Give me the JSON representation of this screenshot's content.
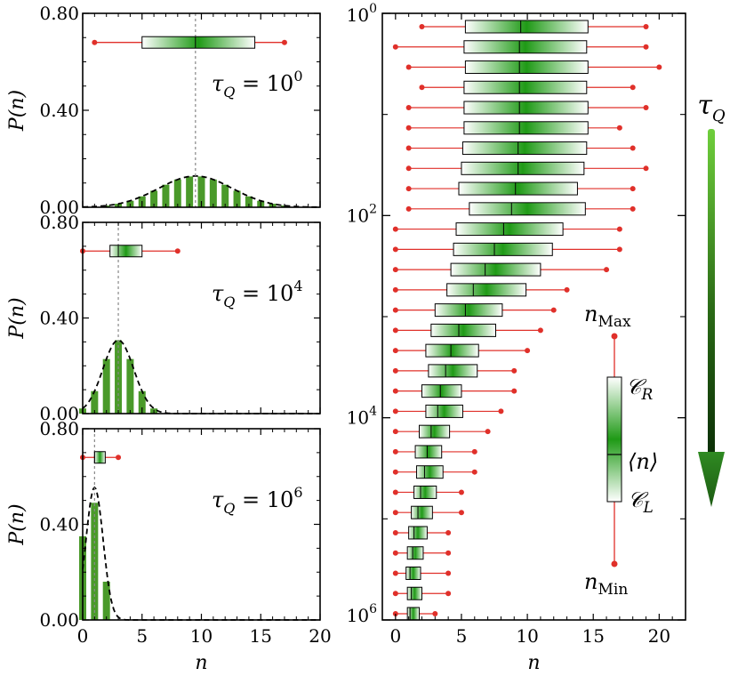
{
  "colors": {
    "bar": "#4a9a2a",
    "box_dark": "#1f9a16",
    "whisker": "#e0302a",
    "fit": "#000000",
    "mean_line": "#888888",
    "arrow_top": "#6fcf3c",
    "arrow_bottom": "#0b2e06"
  },
  "chart_data": [
    {
      "type": "bar",
      "panel": "top-left",
      "annotation": {
        "tau": "τ",
        "sub": "Q",
        "eq": " = 10",
        "exp": "0"
      },
      "xlabel": "n",
      "ylabel": "P(n)",
      "xlim": [
        0,
        20
      ],
      "ylim": [
        0,
        0.8
      ],
      "xticks": [
        "0",
        "5",
        "10",
        "15",
        "20"
      ],
      "yticks": [
        "0.00",
        "0.40",
        "0.80"
      ],
      "fit": {
        "mean": 9.5,
        "sd": 3.1
      },
      "mean_marker": 9.5,
      "box": {
        "min": 1,
        "q1": 5,
        "mean": 9.5,
        "q3": 14.5,
        "max": 17,
        "y": 0.68
      }
    },
    {
      "type": "bar",
      "panel": "middle-left",
      "annotation": {
        "tau": "τ",
        "sub": "Q",
        "eq": " = 10",
        "exp": "4"
      },
      "xlabel": "n",
      "ylabel": "P(n)",
      "xlim": [
        0,
        20
      ],
      "ylim": [
        0,
        0.8
      ],
      "xticks": [
        "0",
        "5",
        "10",
        "15",
        "20"
      ],
      "yticks": [
        "0.00",
        "0.40",
        "0.80"
      ],
      "fit": {
        "mean": 3.0,
        "sd": 1.3
      },
      "mean_marker": 3.0,
      "box": {
        "min": 0,
        "q1": 2.3,
        "mean": 3.0,
        "q3": 5.0,
        "max": 8,
        "y": 0.68
      }
    },
    {
      "type": "bar",
      "panel": "bottom-left",
      "annotation": {
        "tau": "τ",
        "sub": "Q",
        "eq": " = 10",
        "exp": "6"
      },
      "xlabel": "n",
      "ylabel": "P(n)",
      "xlim": [
        0,
        20
      ],
      "ylim": [
        0,
        0.8
      ],
      "xticks": [
        "0",
        "5",
        "10",
        "15",
        "20"
      ],
      "yticks": [
        "0.00",
        "0.40",
        "0.80"
      ],
      "bars": [
        {
          "x": 0,
          "y": 0.35
        },
        {
          "x": 1,
          "y": 0.49
        },
        {
          "x": 2,
          "y": 0.16
        }
      ],
      "fit": {
        "mean": 1.0,
        "sd": 0.72
      },
      "mean_marker": 1.0,
      "box": {
        "min": 0,
        "q1": 1.0,
        "mean": 1.0,
        "q3": 1.9,
        "max": 3,
        "y": 0.68
      }
    },
    {
      "type": "box",
      "panel": "right",
      "xlabel": "n",
      "xlim": [
        -1,
        22
      ],
      "xticks": [
        "0",
        "5",
        "10",
        "15",
        "20"
      ],
      "ylog": true,
      "ylim_exp": [
        0,
        6
      ],
      "yticks": [
        {
          "base": "10",
          "exp": "0"
        },
        {
          "base": "10",
          "exp": "2"
        },
        {
          "base": "10",
          "exp": "4"
        },
        {
          "base": "10",
          "exp": "6"
        }
      ],
      "boxes": [
        {
          "min": 2,
          "q1": 5.3,
          "mean": 9.5,
          "q3": 14.6,
          "max": 19
        },
        {
          "min": 0,
          "q1": 5.2,
          "mean": 9.4,
          "q3": 14.5,
          "max": 19
        },
        {
          "min": 1,
          "q1": 5.3,
          "mean": 9.4,
          "q3": 14.6,
          "max": 20
        },
        {
          "min": 2,
          "q1": 5.2,
          "mean": 9.4,
          "q3": 14.5,
          "max": 18
        },
        {
          "min": 1,
          "q1": 5.2,
          "mean": 9.4,
          "q3": 14.6,
          "max": 19
        },
        {
          "min": 1,
          "q1": 5.2,
          "mean": 9.4,
          "q3": 14.6,
          "max": 17
        },
        {
          "min": 1,
          "q1": 5.1,
          "mean": 9.3,
          "q3": 14.5,
          "max": 18
        },
        {
          "min": 1,
          "q1": 5.0,
          "mean": 9.3,
          "q3": 14.3,
          "max": 19
        },
        {
          "min": 1,
          "q1": 4.8,
          "mean": 9.1,
          "q3": 13.8,
          "max": 18
        },
        {
          "min": 1,
          "q1": 5.6,
          "mean": 8.8,
          "q3": 14.4,
          "max": 18
        },
        {
          "min": 0,
          "q1": 4.6,
          "mean": 8.2,
          "q3": 12.7,
          "max": 17
        },
        {
          "min": 0,
          "q1": 4.4,
          "mean": 7.5,
          "q3": 11.9,
          "max": 17
        },
        {
          "min": 0,
          "q1": 4.2,
          "mean": 6.8,
          "q3": 11.0,
          "max": 16
        },
        {
          "min": 0,
          "q1": 3.9,
          "mean": 5.9,
          "q3": 9.9,
          "max": 13
        },
        {
          "min": 0,
          "q1": 3.0,
          "mean": 5.3,
          "q3": 8.1,
          "max": 12
        },
        {
          "min": 0,
          "q1": 2.7,
          "mean": 4.8,
          "q3": 7.6,
          "max": 11
        },
        {
          "min": 0,
          "q1": 2.3,
          "mean": 4.2,
          "q3": 6.3,
          "max": 10
        },
        {
          "min": 0,
          "q1": 2.5,
          "mean": 3.8,
          "q3": 6.2,
          "max": 9
        },
        {
          "min": 0,
          "q1": 2.0,
          "mean": 3.4,
          "q3": 5.0,
          "max": 9
        },
        {
          "min": 0,
          "q1": 2.3,
          "mean": 3.2,
          "q3": 5.1,
          "max": 8
        },
        {
          "min": 0,
          "q1": 1.8,
          "mean": 2.7,
          "q3": 4.1,
          "max": 7
        },
        {
          "min": 0,
          "q1": 1.5,
          "mean": 2.4,
          "q3": 3.5,
          "max": 6
        },
        {
          "min": 0,
          "q1": 1.6,
          "mean": 2.2,
          "q3": 3.6,
          "max": 6
        },
        {
          "min": 0,
          "q1": 1.4,
          "mean": 1.9,
          "q3": 3.1,
          "max": 5
        },
        {
          "min": 0,
          "q1": 1.2,
          "mean": 1.7,
          "q3": 2.8,
          "max": 5
        },
        {
          "min": 0,
          "q1": 1.0,
          "mean": 1.4,
          "q3": 2.4,
          "max": 4
        },
        {
          "min": 0,
          "q1": 0.9,
          "mean": 1.3,
          "q3": 2.1,
          "max": 4
        },
        {
          "min": 0,
          "q1": 0.8,
          "mean": 1.1,
          "q3": 1.9,
          "max": 4
        },
        {
          "min": 0,
          "q1": 0.9,
          "mean": 1.2,
          "q3": 2.0,
          "max": 4
        },
        {
          "min": 0,
          "q1": 0.9,
          "mean": 1.1,
          "q3": 1.8,
          "max": 3
        }
      ],
      "legend": {
        "max": {
          "base": "n",
          "sub": "Max"
        },
        "cr": {
          "base": "𝒞",
          "sub": "R"
        },
        "mean": "⟨n⟩",
        "cl": {
          "base": "𝒞",
          "sub": "L"
        },
        "min": {
          "base": "n",
          "sub": "Min"
        }
      }
    }
  ],
  "arrow_label": {
    "tau": "τ",
    "sub": "Q"
  }
}
